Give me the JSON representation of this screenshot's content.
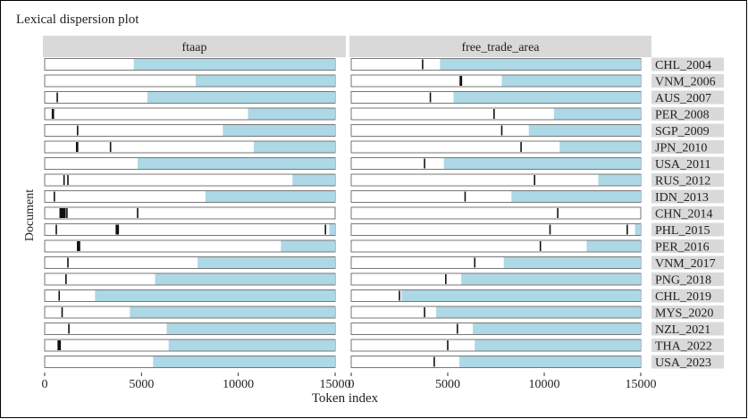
{
  "chart_data": {
    "type": "dispersion",
    "title": "Lexical dispersion plot",
    "xlabel": "Token index",
    "ylabel": "Document",
    "xlim": [
      0,
      15000
    ],
    "x_ticks": [
      0,
      5000,
      10000,
      15000
    ],
    "x_tick_labels": [
      "0",
      "5000",
      "10000",
      "15000"
    ],
    "panels": [
      "ftaap",
      "free_trade_area"
    ],
    "documents": [
      {
        "name": "CHL_2004",
        "length": 15000,
        "shaded_from": 4600,
        "hits": {
          "ftaap": [],
          "free_trade_area": [
            3700
          ]
        }
      },
      {
        "name": "VNM_2006",
        "length": 15000,
        "shaded_from": 7800,
        "hits": {
          "ftaap": [],
          "free_trade_area": [
            5650,
            5680,
            5710
          ]
        }
      },
      {
        "name": "AUS_2007",
        "length": 15000,
        "shaded_from": 5300,
        "hits": {
          "ftaap": [
            650
          ],
          "free_trade_area": [
            4100
          ]
        }
      },
      {
        "name": "PER_2008",
        "length": 15000,
        "shaded_from": 10500,
        "hits": {
          "ftaap": [
            400,
            450
          ],
          "free_trade_area": [
            7400
          ]
        }
      },
      {
        "name": "SGP_2009",
        "length": 15000,
        "shaded_from": 9200,
        "hits": {
          "ftaap": [
            1700
          ],
          "free_trade_area": [
            7800
          ]
        }
      },
      {
        "name": "JPN_2010",
        "length": 15000,
        "shaded_from": 10800,
        "hits": {
          "ftaap": [
            1650,
            1700,
            3400
          ],
          "free_trade_area": [
            8800
          ]
        }
      },
      {
        "name": "USA_2011",
        "length": 15000,
        "shaded_from": 4800,
        "hits": {
          "ftaap": [],
          "free_trade_area": [
            3800
          ]
        }
      },
      {
        "name": "RUS_2012",
        "length": 15000,
        "shaded_from": 12800,
        "hits": {
          "ftaap": [
            1000,
            1200
          ],
          "free_trade_area": [
            9500
          ]
        }
      },
      {
        "name": "IDN_2013",
        "length": 15000,
        "shaded_from": 8300,
        "hits": {
          "ftaap": [
            500
          ],
          "free_trade_area": [
            5900
          ]
        }
      },
      {
        "name": "CHN_2014",
        "length": 15000,
        "shaded_from": 15000,
        "hits": {
          "ftaap": [
            800,
            850,
            900,
            950,
            1000,
            1050,
            1150,
            4800
          ],
          "free_trade_area": [
            10700
          ]
        }
      },
      {
        "name": "PHL_2015",
        "length": 15000,
        "shaded_from": 14700,
        "hits": {
          "ftaap": [
            600,
            3700,
            3750,
            3800,
            14500
          ],
          "free_trade_area": [
            10300,
            14300
          ]
        }
      },
      {
        "name": "PER_2016",
        "length": 15000,
        "shaded_from": 12200,
        "hits": {
          "ftaap": [
            1700,
            1750,
            1800
          ],
          "free_trade_area": [
            9800
          ]
        }
      },
      {
        "name": "VNM_2017",
        "length": 15000,
        "shaded_from": 7900,
        "hits": {
          "ftaap": [
            1200
          ],
          "free_trade_area": [
            6400
          ]
        }
      },
      {
        "name": "PNG_2018",
        "length": 15000,
        "shaded_from": 5700,
        "hits": {
          "ftaap": [
            1100
          ],
          "free_trade_area": [
            4900
          ]
        }
      },
      {
        "name": "CHL_2019",
        "length": 15000,
        "shaded_from": 2600,
        "hits": {
          "ftaap": [
            750
          ],
          "free_trade_area": [
            2500
          ]
        }
      },
      {
        "name": "MYS_2020",
        "length": 15000,
        "shaded_from": 4400,
        "hits": {
          "ftaap": [
            900
          ],
          "free_trade_area": [
            3800
          ]
        }
      },
      {
        "name": "NZL_2021",
        "length": 15000,
        "shaded_from": 6300,
        "hits": {
          "ftaap": [
            1250
          ],
          "free_trade_area": [
            5500
          ]
        }
      },
      {
        "name": "THA_2022",
        "length": 15000,
        "shaded_from": 6400,
        "hits": {
          "ftaap": [
            700,
            750,
            800
          ],
          "free_trade_area": [
            5000
          ]
        }
      },
      {
        "name": "USA_2023",
        "length": 15000,
        "shaded_from": 5600,
        "hits": {
          "ftaap": [],
          "free_trade_area": [
            4300
          ]
        }
      }
    ],
    "colors": {
      "shade": "#add8e6",
      "strip": "#d9d9d9",
      "hit": "#111111",
      "bar_border": "#555555",
      "bar_fill": "#ffffff"
    },
    "legend": "none",
    "grid": false
  }
}
